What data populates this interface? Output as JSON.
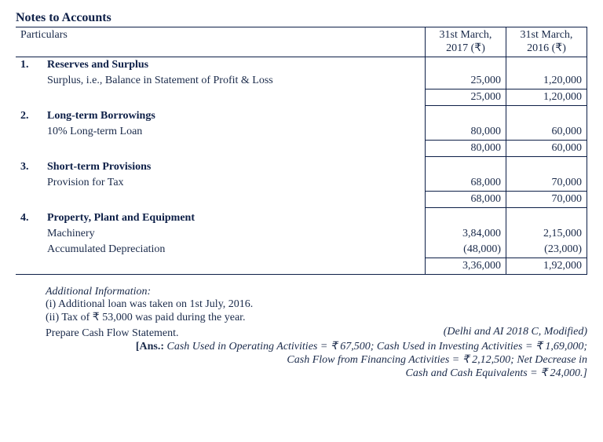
{
  "title": "Notes to Accounts",
  "columns": {
    "particulars": "Particulars",
    "y2017": "31st March, 2017 (₹)",
    "y2016": "31st March, 2016 (₹)"
  },
  "sections": [
    {
      "num": "1.",
      "head": "Reserves and Surplus",
      "rows": [
        {
          "label": "Surplus, i.e., Balance in Statement of Profit & Loss",
          "y2017": "25,000",
          "y2016": "1,20,000"
        }
      ],
      "total": {
        "y2017": "25,000",
        "y2016": "1,20,000"
      }
    },
    {
      "num": "2.",
      "head": "Long-term Borrowings",
      "rows": [
        {
          "label": "10% Long-term Loan",
          "y2017": "80,000",
          "y2016": "60,000"
        }
      ],
      "total": {
        "y2017": "80,000",
        "y2016": "60,000"
      }
    },
    {
      "num": "3.",
      "head": "Short-term Provisions",
      "rows": [
        {
          "label": "Provision for Tax",
          "y2017": "68,000",
          "y2016": "70,000"
        }
      ],
      "total": {
        "y2017": "68,000",
        "y2016": "70,000"
      }
    },
    {
      "num": "4.",
      "head": "Property, Plant and Equipment",
      "rows": [
        {
          "label": "Machinery",
          "y2017": "3,84,000",
          "y2016": "2,15,000"
        },
        {
          "label": "Accumulated Depreciation",
          "y2017": "(48,000)",
          "y2016": "(23,000)"
        }
      ],
      "total": {
        "y2017": "3,36,000",
        "y2016": "1,92,000"
      }
    }
  ],
  "info": {
    "head": "Additional Information:",
    "i": "(i)  Additional loan was taken on 1st July, 2016.",
    "ii": "(ii)  Tax of ₹ 53,000 was paid during the year.",
    "prepare": "Prepare Cash Flow Statement.",
    "source": "(Delhi and AI 2018 C, Modified)"
  },
  "ans": {
    "label": "[Ans.:",
    "l1": "Cash Used in Operating Activities = ₹ 67,500; Cash Used in Investing Activities = ₹ 1,69,000;",
    "l2": "Cash Flow from Financing Activities = ₹ 2,12,500; Net Decrease in",
    "l3": "Cash and Cash Equivalents = ₹ 24,000.]"
  }
}
